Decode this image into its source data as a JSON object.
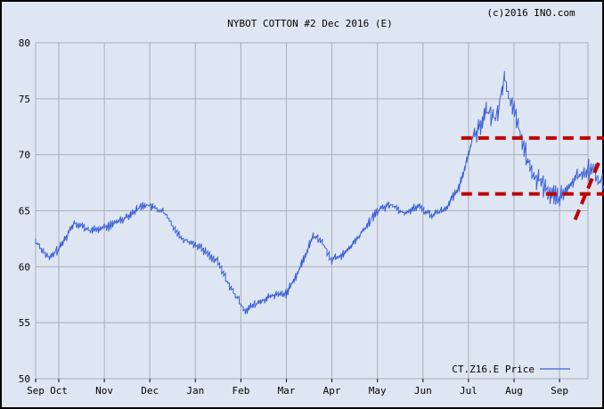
{
  "header": {
    "title": "NYBOT COTTON #2 Dec 2016 (E)",
    "copyright": "(c)2016 INO.com"
  },
  "colors": {
    "background": "#dfe6f3",
    "grid": "#a9adb4",
    "price_line": "#3a5fd9",
    "annotation": "#c00000"
  },
  "chart_data": {
    "type": "line",
    "title": "NYBOT COTTON #2 Dec 2016 (E)",
    "xlabel": "",
    "ylabel": "",
    "ylim": [
      50,
      80
    ],
    "y_ticks": [
      50,
      55,
      60,
      65,
      70,
      75,
      80
    ],
    "x_tick_labels": [
      "Sep",
      "Oct",
      "Nov",
      "Dec",
      "Jan",
      "Feb",
      "Mar",
      "Apr",
      "May",
      "Jun",
      "Jul",
      "Aug",
      "Sep"
    ],
    "grid": true,
    "legend": {
      "position": "bottom-right",
      "entries": [
        "CT.Z16.E Price"
      ]
    },
    "series": [
      {
        "name": "CT.Z16.E Price",
        "x_month_index": [
          0,
          0.3,
          0.55,
          0.85,
          1.2,
          1.6,
          2.0,
          2.4,
          2.8,
          3.2,
          3.6,
          4.0,
          4.3,
          4.6,
          4.9,
          5.2,
          5.5,
          5.8,
          6.1,
          6.3,
          6.5,
          6.8,
          7.2,
          7.5,
          7.8,
          8.1,
          8.4,
          8.7,
          9.0,
          9.3,
          9.6,
          9.9,
          10.1,
          10.3,
          10.6,
          10.9,
          11.1,
          11.3,
          11.55,
          11.8,
          12.0,
          12.2,
          12.4,
          12.5
        ],
        "values": [
          62.3,
          60.7,
          61.8,
          64.0,
          63.2,
          63.6,
          64.5,
          65.6,
          64.9,
          62.6,
          61.8,
          60.4,
          58.0,
          56.1,
          56.8,
          57.4,
          57.6,
          59.8,
          62.8,
          62.2,
          60.6,
          61.2,
          63.2,
          65.0,
          65.6,
          64.8,
          65.4,
          64.6,
          65.2,
          67.0,
          71.5,
          73.8,
          73.2,
          76.8,
          72.5,
          68.2,
          67.5,
          66.5,
          66.2,
          67.6,
          68.4,
          68.8,
          67.6,
          67.4
        ]
      }
    ],
    "annotations": [
      {
        "type": "horizontal_dashed_line",
        "y": 71.5,
        "x_from": 9.35,
        "x_to": 12.5
      },
      {
        "type": "horizontal_dashed_line",
        "y": 66.5,
        "x_from": 9.35,
        "x_to": 12.5
      },
      {
        "type": "trend_dashed_line",
        "from": [
          11.85,
          64.2
        ],
        "to": [
          12.4,
          69.6
        ]
      }
    ]
  }
}
